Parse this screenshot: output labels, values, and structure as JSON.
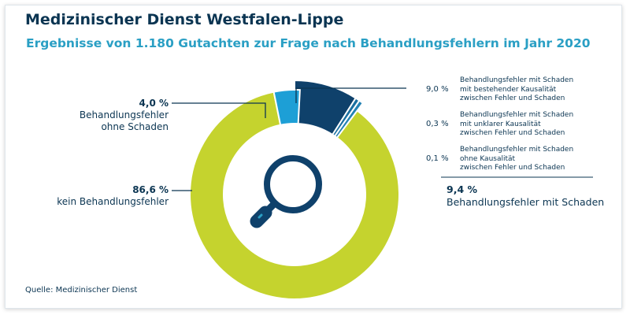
{
  "header": {
    "title": "Medizinischer Dienst Westfalen-Lippe",
    "subtitle": "Ergebnisse von 1.180 Gutachten zur Frage nach Behandlungsfehlern im Jahr 2020"
  },
  "source": "Quelle: Medizinischer Dienst",
  "colors": {
    "kein_fehler": "#c5d32e",
    "fehler_ohne_schaden": "#1d9fd6",
    "kausal": "#0f416b",
    "unklar": "#1a6fa0",
    "ohne_kausal": "#2482b3",
    "text": "#0b3552",
    "accent": "#2a9fc4"
  },
  "icon": "magnifier-icon",
  "labels": {
    "kein_fehler": {
      "pct": "86,6 %",
      "text": "kein Behandlungsfehler"
    },
    "fehler_ohne_schaden": {
      "pct": "4,0 %",
      "line1": "Behandlungsfehler",
      "line2": "ohne Schaden"
    },
    "right": [
      {
        "pct": "9,0 %",
        "line1": "Behandlungsfehler mit Schaden",
        "line2": "mit bestehender Kausalität",
        "line3": "zwischen Fehler und Schaden"
      },
      {
        "pct": "0,3 %",
        "line1": "Behandlungsfehler mit Schaden",
        "line2": "mit unklarer Kausalität",
        "line3": "zwischen Fehler und Schaden"
      },
      {
        "pct": "0,1 %",
        "line1": "Behandlungsfehler mit Schaden",
        "line2": "ohne Kausalität",
        "line3": "zwischen Fehler und Schaden"
      }
    ],
    "total": {
      "pct": "9,4 %",
      "text": "Behandlungsfehler mit Schaden"
    }
  },
  "chart_data": {
    "type": "pie",
    "title": "Ergebnisse von 1.180 Gutachten zur Frage nach Behandlungsfehlern im Jahr 2020",
    "unit": "%",
    "slices": [
      {
        "label": "Behandlungsfehler mit Schaden mit bestehender Kausalität zwischen Fehler und Schaden",
        "value": 9.0,
        "exploded": true
      },
      {
        "label": "Behandlungsfehler mit Schaden mit unklarer Kausalität zwischen Fehler und Schaden",
        "value": 0.3,
        "exploded": true
      },
      {
        "label": "Behandlungsfehler mit Schaden ohne Kausalität zwischen Fehler und Schaden",
        "value": 0.1,
        "exploded": true
      },
      {
        "label": "kein Behandlungsfehler",
        "value": 86.6,
        "exploded": false
      },
      {
        "label": "Behandlungsfehler ohne Schaden",
        "value": 4.0,
        "exploded": false
      }
    ],
    "summary": {
      "label": "Behandlungsfehler mit Schaden",
      "value": 9.4
    }
  }
}
